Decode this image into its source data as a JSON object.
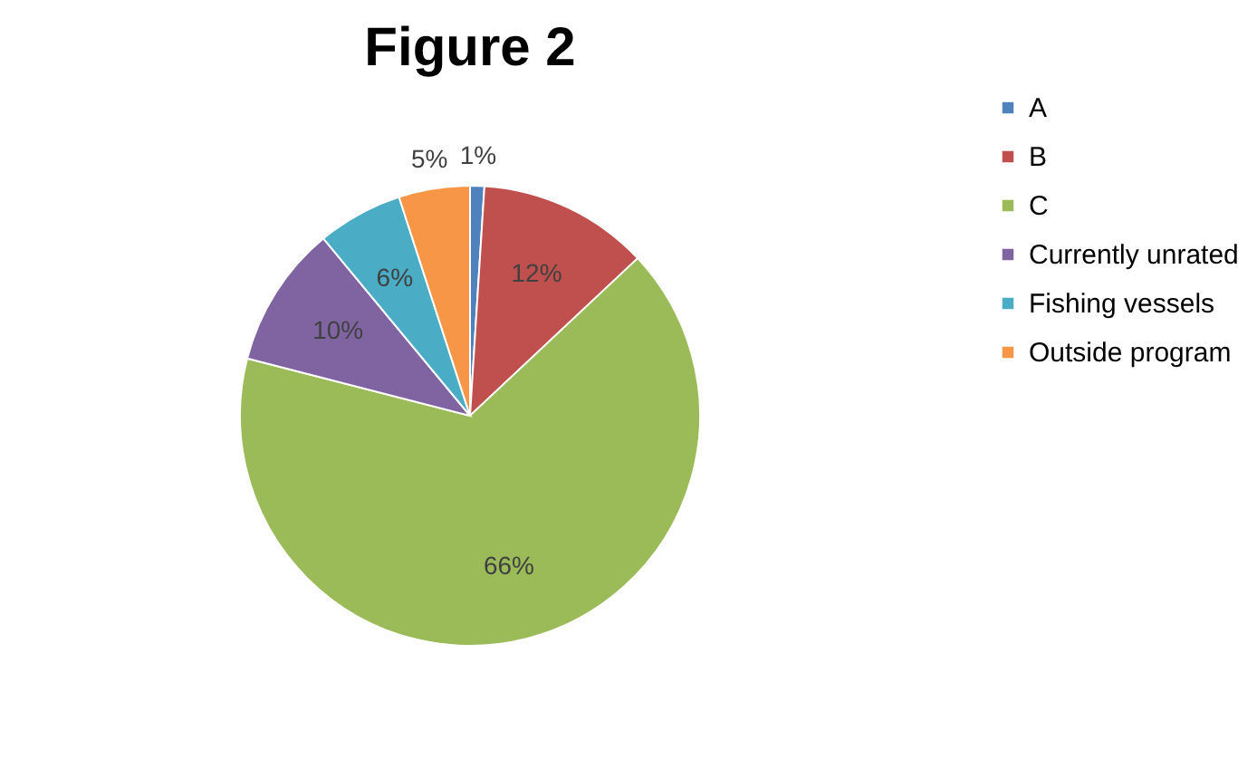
{
  "chart_data": {
    "type": "pie",
    "title": "Figure 2",
    "categories": [
      "A",
      "B",
      "C",
      "Currently unrated",
      "Fishing vessels",
      "Outside program"
    ],
    "values": [
      1,
      12,
      66,
      10,
      6,
      5
    ],
    "colors": [
      "#4f81bd",
      "#c0504d",
      "#9bbb59",
      "#8064a2",
      "#4bacc6",
      "#f79646"
    ],
    "value_labels": [
      "1%",
      "12%",
      "66%",
      "10%",
      "6%",
      "5%"
    ],
    "legend": "right"
  }
}
